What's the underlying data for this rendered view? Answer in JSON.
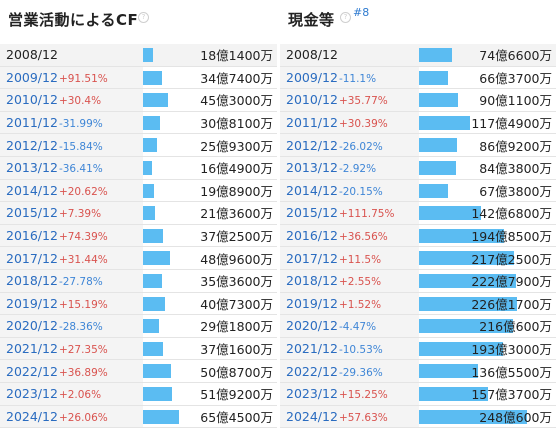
{
  "left_panel": {
    "title": "営業活動によるCF",
    "help": "?",
    "max_value": 65.45,
    "rows": [
      {
        "year": "2008/12",
        "change": "",
        "dir": "",
        "value": "18億1400万",
        "amount": 18.14
      },
      {
        "year": "2009/12",
        "change": "+91.51%",
        "dir": "up",
        "value": "34億7400万",
        "amount": 34.74
      },
      {
        "year": "2010/12",
        "change": "+30.4%",
        "dir": "up",
        "value": "45億3000万",
        "amount": 45.3
      },
      {
        "year": "2011/12",
        "change": "-31.99%",
        "dir": "down",
        "value": "30億8100万",
        "amount": 30.81
      },
      {
        "year": "2012/12",
        "change": "-15.84%",
        "dir": "down",
        "value": "25億9300万",
        "amount": 25.93
      },
      {
        "year": "2013/12",
        "change": "-36.41%",
        "dir": "down",
        "value": "16億4900万",
        "amount": 16.49
      },
      {
        "year": "2014/12",
        "change": "+20.62%",
        "dir": "up",
        "value": "19億8900万",
        "amount": 19.89
      },
      {
        "year": "2015/12",
        "change": "+7.39%",
        "dir": "up",
        "value": "21億3600万",
        "amount": 21.36
      },
      {
        "year": "2016/12",
        "change": "+74.39%",
        "dir": "up",
        "value": "37億2500万",
        "amount": 37.25
      },
      {
        "year": "2017/12",
        "change": "+31.44%",
        "dir": "up",
        "value": "48億9600万",
        "amount": 48.96
      },
      {
        "year": "2018/12",
        "change": "-27.78%",
        "dir": "down",
        "value": "35億3600万",
        "amount": 35.36
      },
      {
        "year": "2019/12",
        "change": "+15.19%",
        "dir": "up",
        "value": "40億7300万",
        "amount": 40.73
      },
      {
        "year": "2020/12",
        "change": "-28.36%",
        "dir": "down",
        "value": "29億1800万",
        "amount": 29.18
      },
      {
        "year": "2021/12",
        "change": "+27.35%",
        "dir": "up",
        "value": "37億1600万",
        "amount": 37.16
      },
      {
        "year": "2022/12",
        "change": "+36.89%",
        "dir": "up",
        "value": "50億8700万",
        "amount": 50.87
      },
      {
        "year": "2023/12",
        "change": "+2.06%",
        "dir": "up",
        "value": "51億9200万",
        "amount": 51.92
      },
      {
        "year": "2024/12",
        "change": "+26.06%",
        "dir": "up",
        "value": "65億4500万",
        "amount": 65.45
      }
    ]
  },
  "right_panel": {
    "title": "現金等",
    "help": "?",
    "rank": "#8",
    "max_value": 248.06,
    "rows": [
      {
        "year": "2008/12",
        "change": "",
        "dir": "",
        "value": "74億6600万",
        "amount": 74.66
      },
      {
        "year": "2009/12",
        "change": "-11.1%",
        "dir": "down",
        "value": "66億3700万",
        "amount": 66.37
      },
      {
        "year": "2010/12",
        "change": "+35.77%",
        "dir": "up",
        "value": "90億1100万",
        "amount": 90.11
      },
      {
        "year": "2011/12",
        "change": "+30.39%",
        "dir": "up",
        "value": "117億4900万",
        "amount": 117.49
      },
      {
        "year": "2012/12",
        "change": "-26.02%",
        "dir": "down",
        "value": "86億9200万",
        "amount": 86.92
      },
      {
        "year": "2013/12",
        "change": "-2.92%",
        "dir": "down",
        "value": "84億3800万",
        "amount": 84.38
      },
      {
        "year": "2014/12",
        "change": "-20.15%",
        "dir": "down",
        "value": "67億3800万",
        "amount": 67.38
      },
      {
        "year": "2015/12",
        "change": "+111.75%",
        "dir": "up",
        "value": "142億6800万",
        "amount": 142.68
      },
      {
        "year": "2016/12",
        "change": "+36.56%",
        "dir": "up",
        "value": "194億8500万",
        "amount": 194.85
      },
      {
        "year": "2017/12",
        "change": "+11.5%",
        "dir": "up",
        "value": "217億2500万",
        "amount": 217.25
      },
      {
        "year": "2018/12",
        "change": "+2.55%",
        "dir": "up",
        "value": "222億7900万",
        "amount": 222.79
      },
      {
        "year": "2019/12",
        "change": "+1.52%",
        "dir": "up",
        "value": "226億1700万",
        "amount": 226.17
      },
      {
        "year": "2020/12",
        "change": "-4.47%",
        "dir": "down",
        "value": "216億600万",
        "amount": 216.06
      },
      {
        "year": "2021/12",
        "change": "-10.53%",
        "dir": "down",
        "value": "193億3000万",
        "amount": 193.3
      },
      {
        "year": "2022/12",
        "change": "-29.36%",
        "dir": "down",
        "value": "136億5500万",
        "amount": 136.55
      },
      {
        "year": "2023/12",
        "change": "+15.25%",
        "dir": "up",
        "value": "157億3700万",
        "amount": 157.37
      },
      {
        "year": "2024/12",
        "change": "+57.63%",
        "dir": "up",
        "value": "248億600万",
        "amount": 248.06
      }
    ]
  }
}
